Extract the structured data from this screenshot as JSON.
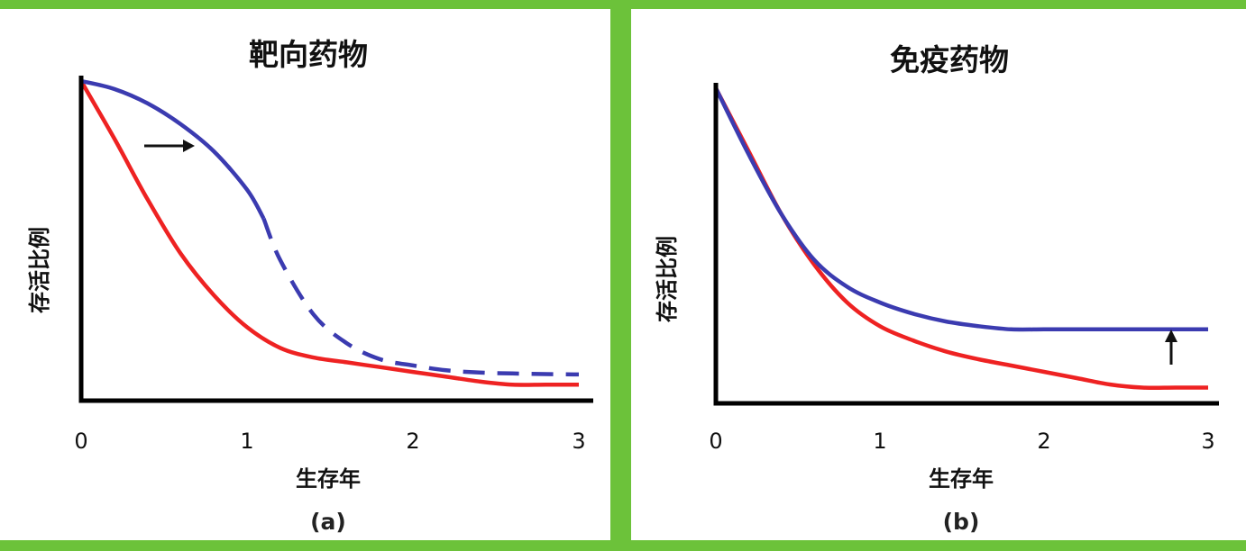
{
  "colors": {
    "frame": "#6cc23a",
    "red_series": "#ee2222",
    "blue_series": "#3b3bb0",
    "axis": "#000000"
  },
  "chart_data": [
    {
      "type": "line",
      "title": "靶向药物",
      "xlabel": "生存年",
      "ylabel": "存活比例",
      "caption": "(a)",
      "xlim": [
        0,
        3
      ],
      "ylim": [
        0,
        1
      ],
      "xticks": [
        "0",
        "1",
        "2",
        "3"
      ],
      "grid": false,
      "annotation": "right-arrow",
      "series": [
        {
          "color": "red",
          "style": "solid",
          "x": [
            0,
            0.2,
            0.4,
            0.6,
            0.8,
            1.0,
            1.2,
            1.4,
            1.6,
            1.8,
            2.0,
            2.2,
            2.4,
            2.6,
            2.8,
            3.0
          ],
          "y": [
            1.0,
            0.82,
            0.63,
            0.46,
            0.33,
            0.23,
            0.165,
            0.135,
            0.12,
            0.105,
            0.09,
            0.075,
            0.06,
            0.05,
            0.05,
            0.05
          ]
        },
        {
          "color": "blue",
          "style": "solid",
          "x": [
            0,
            0.2,
            0.4,
            0.6,
            0.8,
            1.0,
            1.1
          ],
          "y": [
            1.0,
            0.975,
            0.93,
            0.865,
            0.78,
            0.66,
            0.57
          ]
        },
        {
          "color": "blue",
          "style": "dashed",
          "x": [
            1.1,
            1.2,
            1.4,
            1.6,
            1.8,
            2.0,
            2.2,
            2.4,
            2.6,
            2.8,
            3.0
          ],
          "y": [
            0.57,
            0.44,
            0.27,
            0.18,
            0.13,
            0.11,
            0.095,
            0.088,
            0.085,
            0.083,
            0.082
          ]
        }
      ]
    },
    {
      "type": "line",
      "title": "免疫药物",
      "xlabel": "生存年",
      "ylabel": "存活比例",
      "caption": "(b)",
      "xlim": [
        0,
        3
      ],
      "ylim": [
        0,
        1
      ],
      "xticks": [
        "0",
        "1",
        "2",
        "3"
      ],
      "grid": false,
      "annotation": "up-arrow",
      "series": [
        {
          "color": "red",
          "style": "solid",
          "x": [
            0,
            0.2,
            0.4,
            0.6,
            0.8,
            1.0,
            1.2,
            1.4,
            1.6,
            1.8,
            2.0,
            2.2,
            2.4,
            2.6,
            2.8,
            3.0
          ],
          "y": [
            1.0,
            0.8,
            0.6,
            0.44,
            0.32,
            0.245,
            0.2,
            0.165,
            0.14,
            0.12,
            0.1,
            0.08,
            0.06,
            0.05,
            0.05,
            0.05
          ]
        },
        {
          "color": "blue",
          "style": "solid",
          "x": [
            0,
            0.2,
            0.4,
            0.6,
            0.8,
            1.0,
            1.2,
            1.4,
            1.6,
            1.8,
            2.0,
            2.2,
            2.4,
            2.6,
            2.8,
            3.0
          ],
          "y": [
            1.0,
            0.79,
            0.6,
            0.455,
            0.37,
            0.32,
            0.285,
            0.26,
            0.245,
            0.235,
            0.235,
            0.235,
            0.235,
            0.235,
            0.235,
            0.235
          ]
        }
      ]
    }
  ]
}
